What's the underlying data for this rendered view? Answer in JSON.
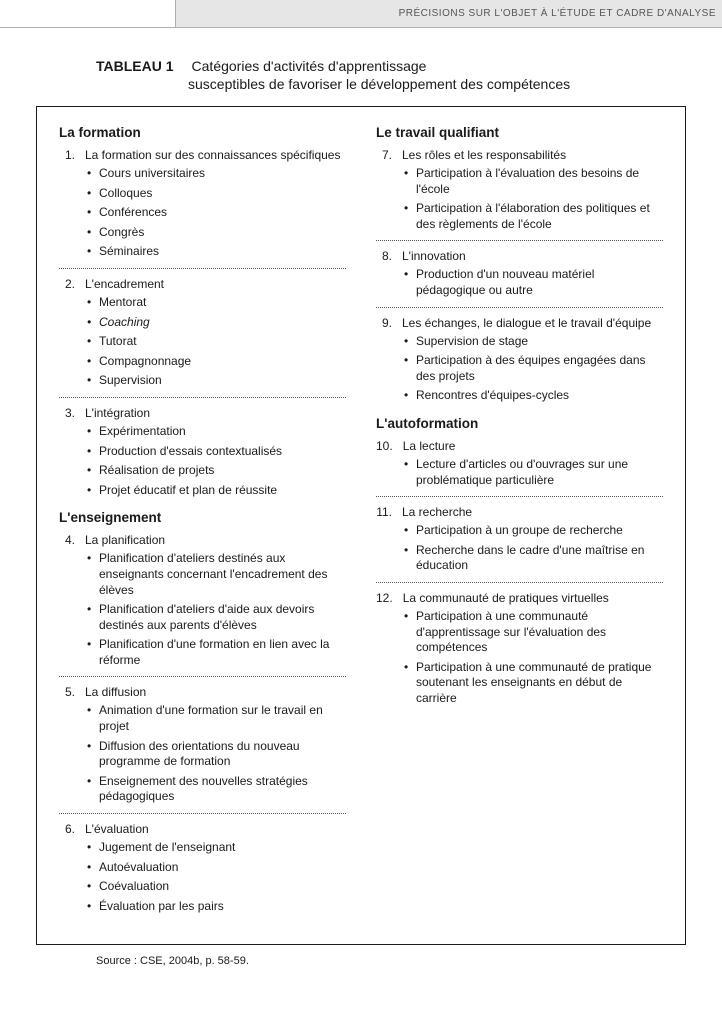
{
  "ribbon": {
    "text": "PRÉCISIONS SUR L'OBJET À L'ÉTUDE ET CADRE D'ANALYSE"
  },
  "header": {
    "label": "TABLEAU 1",
    "title": "Catégories d'activités d'apprentissage",
    "subtitle": "susceptibles de favoriser le développement des compétences"
  },
  "left": {
    "sectionA": {
      "title": "La formation",
      "items": [
        {
          "num": "1.",
          "text": "La formation sur des connaissances spécifiques",
          "bullets": [
            "Cours universitaires",
            "Colloques",
            "Conférences",
            "Congrès",
            "Séminaires"
          ]
        },
        {
          "num": "2.",
          "text": "L'encadrement",
          "bullets": [
            "Mentorat",
            "Coaching",
            "Tutorat",
            "Compagnonnage",
            "Supervision"
          ],
          "italicIdx": 1
        },
        {
          "num": "3.",
          "text": "L'intégration",
          "bullets": [
            "Expérimentation",
            "Production d'essais contextualisés",
            "Réalisation de projets",
            "Projet éducatif et plan de réussite"
          ]
        }
      ]
    },
    "sectionB": {
      "title": "L'enseignement",
      "items": [
        {
          "num": "4.",
          "text": "La planification",
          "bullets": [
            "Planification d'ateliers destinés aux enseignants concernant l'encadrement des élèves",
            "Planification d'ateliers d'aide aux devoirs destinés aux parents d'élèves",
            "Planification d'une formation en lien avec la réforme"
          ]
        },
        {
          "num": "5.",
          "text": "La diffusion",
          "bullets": [
            "Animation d'une formation sur le travail en projet",
            "Diffusion des orientations du nouveau programme de formation",
            "Enseignement des nouvelles stratégies pédagogiques"
          ]
        },
        {
          "num": "6.",
          "text": "L'évaluation",
          "bullets": [
            "Jugement de l'enseignant",
            "Autoévaluation",
            "Coévaluation",
            "Évaluation par les pairs"
          ]
        }
      ]
    }
  },
  "right": {
    "sectionA": {
      "title": "Le travail qualifiant",
      "items": [
        {
          "num": "7.",
          "text": "Les rôles et les responsabilités",
          "bullets": [
            "Participation à l'évaluation des besoins de l'école",
            "Participation à l'élaboration des politiques et des règlements de l'école"
          ]
        },
        {
          "num": "8.",
          "text": "L'innovation",
          "bullets": [
            "Production d'un nouveau matériel pédagogique ou autre"
          ]
        },
        {
          "num": "9.",
          "text": "Les échanges, le dialogue et le travail d'équipe",
          "bullets": [
            "Supervision de stage",
            "Participation à des équipes engagées dans des projets",
            "Rencontres d'équipes-cycles"
          ]
        }
      ]
    },
    "sectionB": {
      "title": "L'autoformation",
      "items": [
        {
          "num": "10.",
          "text": "La lecture",
          "bullets": [
            "Lecture d'articles ou d'ouvrages sur une problématique particulière"
          ]
        },
        {
          "num": "11.",
          "text": "La recherche",
          "bullets": [
            "Participation à un groupe de recherche",
            "Recherche dans le cadre d'une maîtrise en éducation"
          ]
        },
        {
          "num": "12.",
          "text": "La communauté de pratiques virtuelles",
          "bullets": [
            "Participation à une communauté d'apprentissage sur l'évaluation des compétences",
            "Participation à une communauté de pratique soutenant les enseignants en début de carrière"
          ]
        }
      ]
    }
  },
  "source": "Source : CSE, 2004b, p. 58-59."
}
